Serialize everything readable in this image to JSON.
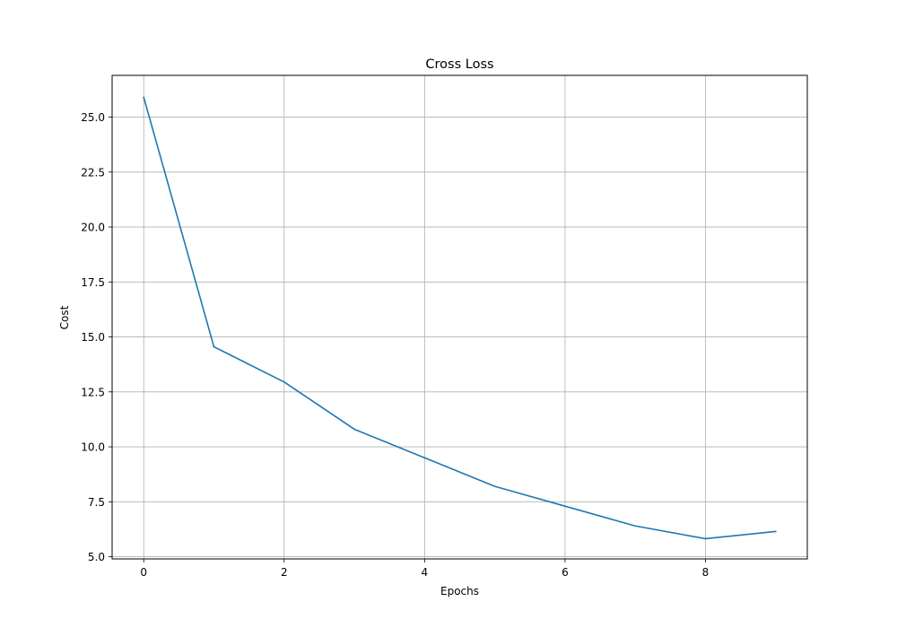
{
  "chart_data": {
    "type": "line",
    "title": "Cross Loss",
    "xlabel": "Epochs",
    "ylabel": "Cost",
    "xlim": [
      -0.45,
      9.45
    ],
    "ylim": [
      4.9,
      26.9
    ],
    "x_ticks": [
      0,
      2,
      4,
      6,
      8
    ],
    "y_ticks": [
      5.0,
      7.5,
      10.0,
      12.5,
      15.0,
      17.5,
      20.0,
      22.5,
      25.0
    ],
    "y_tick_labels": [
      "5.0",
      "7.5",
      "10.0",
      "12.5",
      "15.0",
      "17.5",
      "20.0",
      "22.5",
      "25.0"
    ],
    "grid": true,
    "legend": false,
    "series": [
      {
        "color": "#1f77b4",
        "x": [
          0,
          1,
          2,
          3,
          4,
          5,
          6,
          7,
          8,
          9
        ],
        "values": [
          25.9,
          14.55,
          12.95,
          10.8,
          9.5,
          8.2,
          7.3,
          6.4,
          5.82,
          6.15
        ]
      }
    ]
  }
}
